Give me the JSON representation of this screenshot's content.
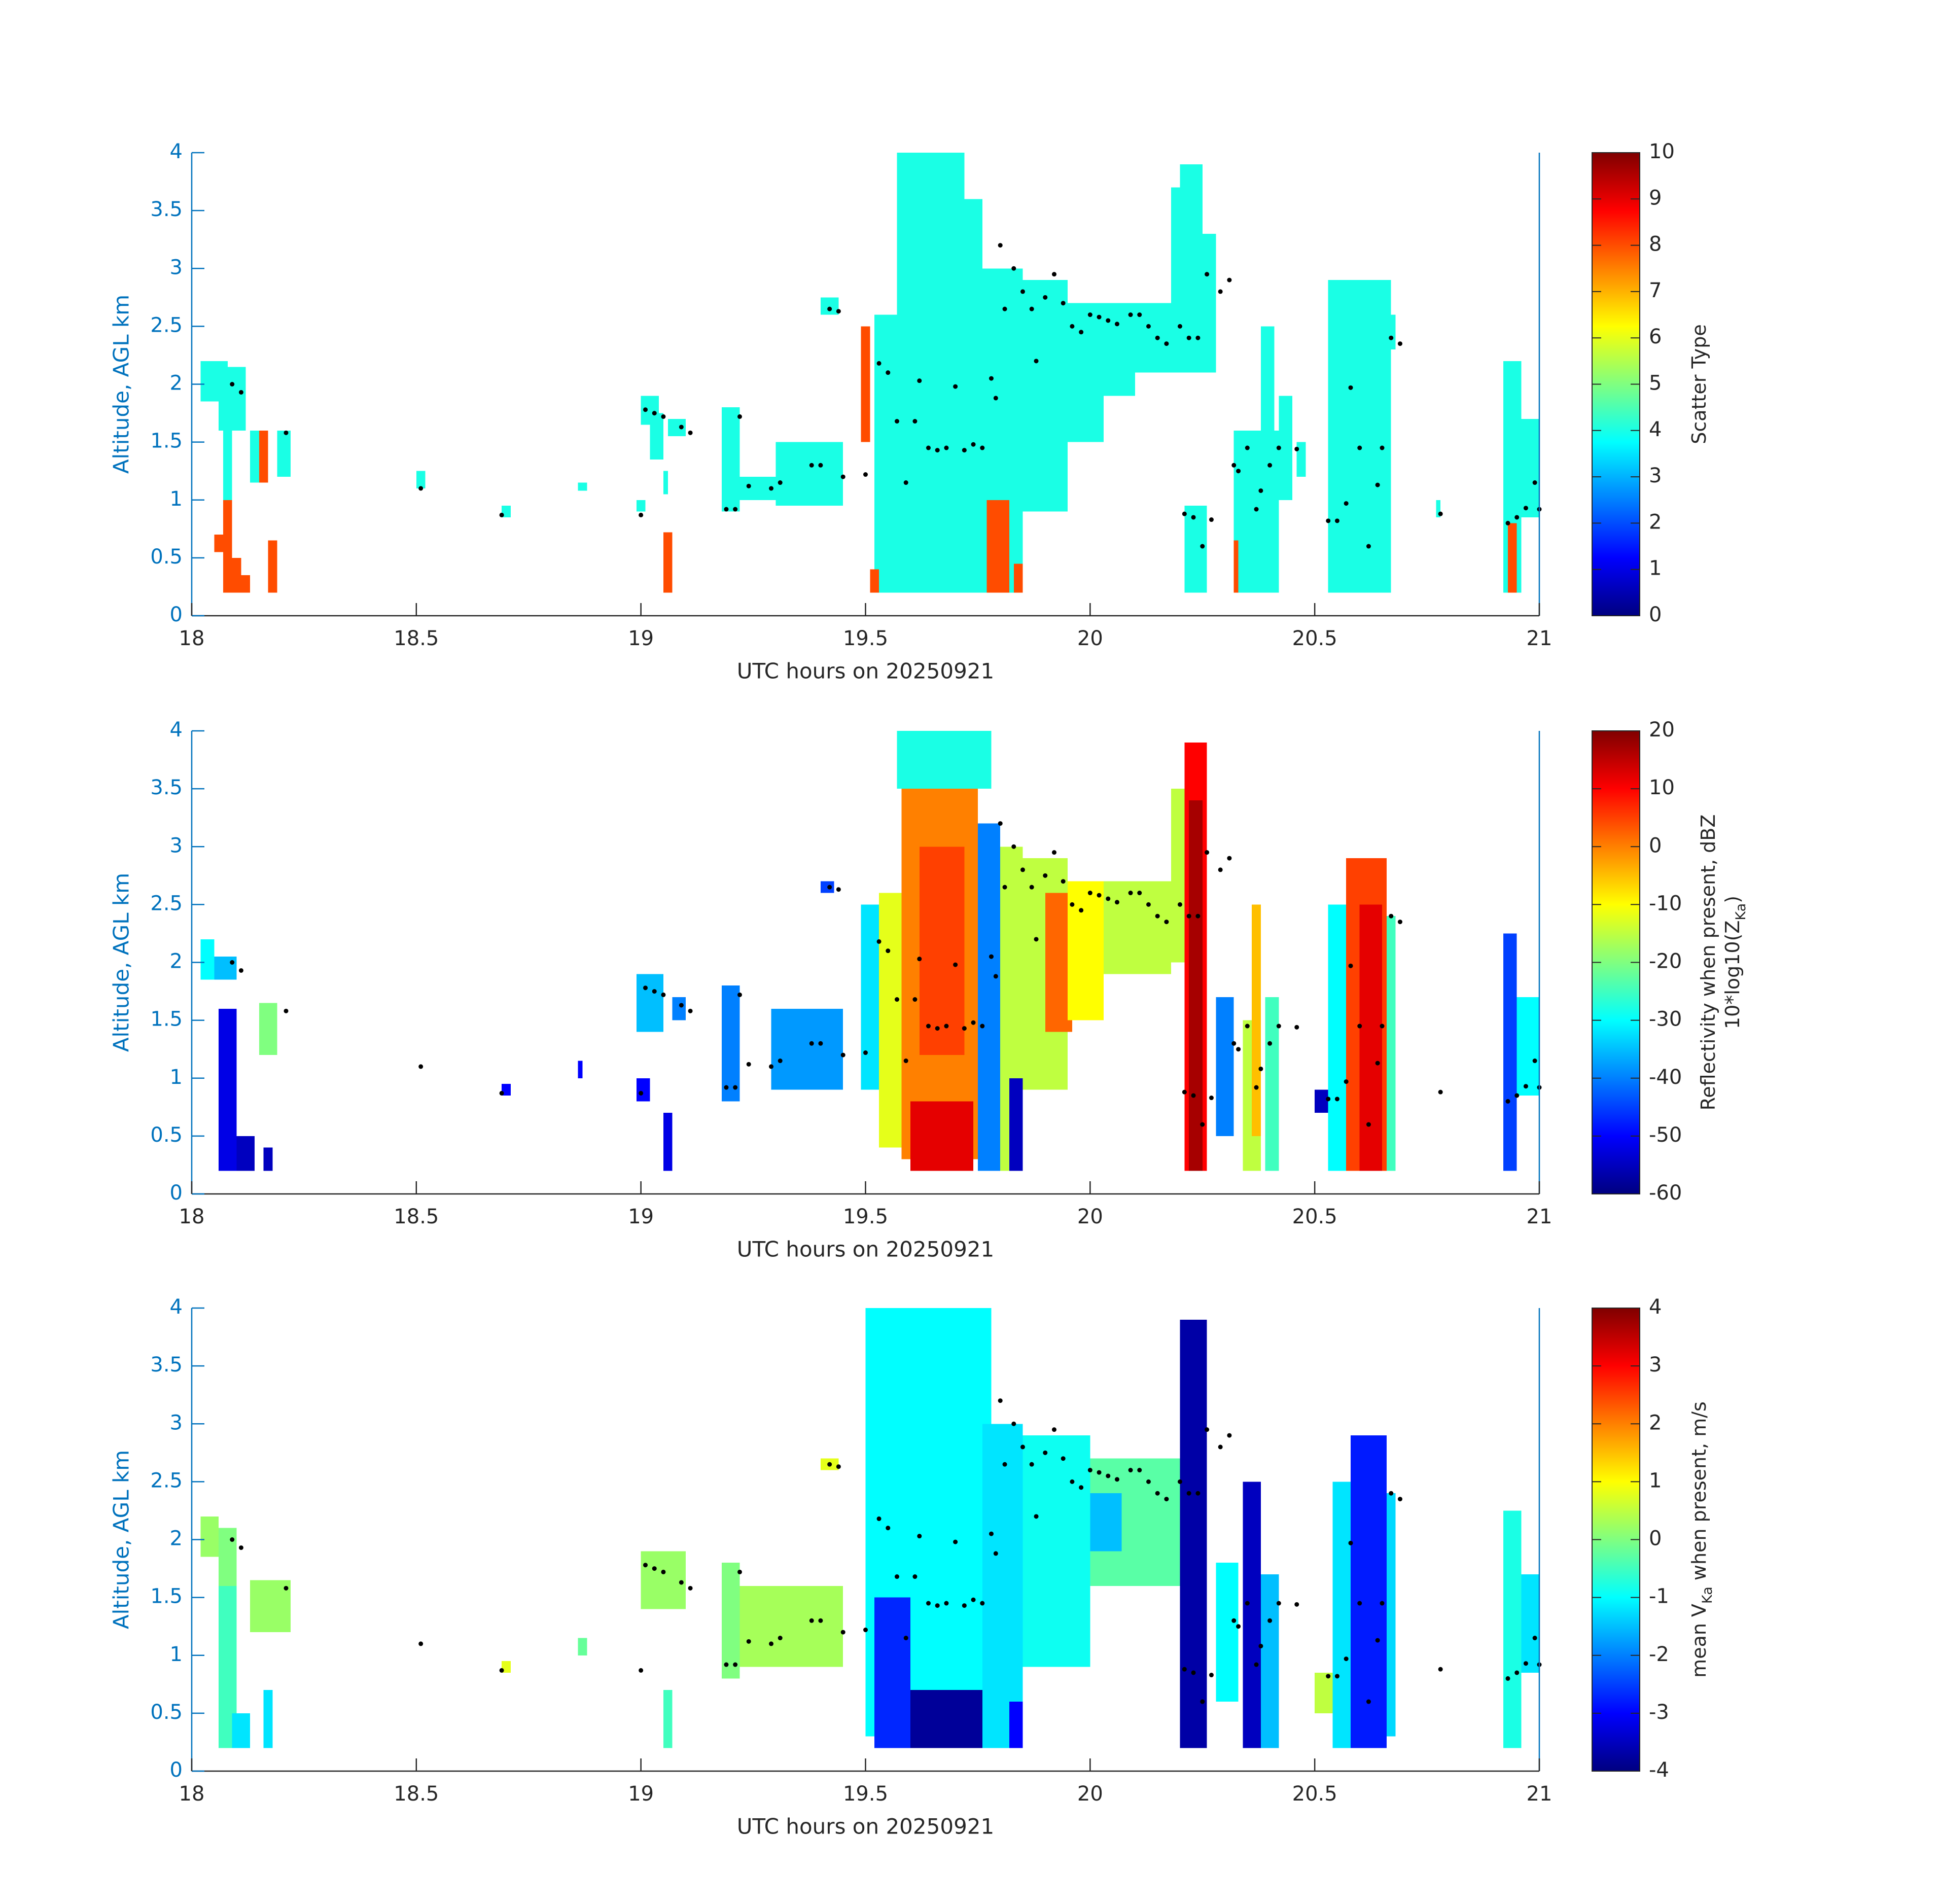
{
  "chart_data": [
    {
      "type": "heatmap",
      "xlabel": "UTC hours on 20250921",
      "ylabel": "Altitude, AGL km",
      "xlim": [
        18,
        21
      ],
      "xticks": [
        18,
        18.5,
        19,
        19.5,
        20,
        20.5,
        21
      ],
      "ylim": [
        0,
        4
      ],
      "yticks": [
        0,
        0.5,
        1,
        1.5,
        2,
        2.5,
        3,
        3.5,
        4
      ],
      "colormap": "jet",
      "clim": [
        0,
        10
      ],
      "cticks": [
        0,
        1,
        2,
        3,
        4,
        5,
        6,
        7,
        8,
        9,
        10
      ],
      "clabel": [
        [
          {
            "text": "Scatter Type"
          }
        ]
      ],
      "cells": [
        [
          18.02,
          18.08,
          1.85,
          2.2,
          4
        ],
        [
          18.06,
          18.12,
          1.6,
          2.15,
          4
        ],
        [
          18.07,
          18.09,
          1.0,
          1.8,
          4
        ],
        [
          18.05,
          18.07,
          0.55,
          0.7,
          8
        ],
        [
          18.07,
          18.09,
          0.2,
          1.0,
          8
        ],
        [
          18.09,
          18.11,
          0.2,
          0.5,
          8
        ],
        [
          18.11,
          18.13,
          0.2,
          0.35,
          8
        ],
        [
          18.13,
          18.15,
          1.15,
          1.6,
          4
        ],
        [
          18.15,
          18.17,
          1.15,
          1.6,
          8
        ],
        [
          18.17,
          18.19,
          0.2,
          0.65,
          8
        ],
        [
          18.19,
          18.22,
          1.2,
          1.6,
          4
        ],
        [
          18.5,
          18.52,
          1.1,
          1.25,
          4
        ],
        [
          18.69,
          18.71,
          0.85,
          0.95,
          4
        ],
        [
          18.86,
          18.88,
          1.08,
          1.15,
          4
        ],
        [
          19.0,
          19.04,
          1.65,
          1.9,
          4
        ],
        [
          19.02,
          19.05,
          1.35,
          1.75,
          4
        ],
        [
          18.99,
          19.01,
          0.9,
          1.0,
          4
        ],
        [
          19.05,
          19.07,
          0.2,
          0.72,
          8
        ],
        [
          19.06,
          19.1,
          1.55,
          1.7,
          4
        ],
        [
          19.05,
          19.06,
          1.05,
          1.25,
          4
        ],
        [
          19.18,
          19.22,
          0.9,
          1.8,
          4
        ],
        [
          19.22,
          19.3,
          1.0,
          1.2,
          4
        ],
        [
          19.3,
          19.45,
          0.95,
          1.5,
          4
        ],
        [
          19.4,
          19.44,
          2.6,
          2.75,
          4
        ],
        [
          19.52,
          19.78,
          0.2,
          2.6,
          4
        ],
        [
          19.57,
          19.72,
          2.6,
          4.0,
          4
        ],
        [
          19.72,
          19.76,
          2.6,
          3.6,
          4
        ],
        [
          19.49,
          19.51,
          1.5,
          2.5,
          8
        ],
        [
          19.51,
          19.53,
          0.2,
          0.4,
          8
        ],
        [
          19.76,
          19.85,
          0.2,
          3.0,
          4
        ],
        [
          19.77,
          19.82,
          0.2,
          1.0,
          8
        ],
        [
          19.83,
          19.85,
          0.2,
          0.45,
          8
        ],
        [
          19.85,
          19.95,
          0.9,
          2.9,
          4
        ],
        [
          19.95,
          20.03,
          1.5,
          2.7,
          4
        ],
        [
          20.03,
          20.1,
          1.9,
          2.7,
          4
        ],
        [
          20.1,
          20.18,
          2.1,
          2.7,
          4
        ],
        [
          20.18,
          20.25,
          2.1,
          3.7,
          4
        ],
        [
          20.2,
          20.25,
          3.7,
          3.9,
          4
        ],
        [
          20.25,
          20.28,
          2.1,
          3.3,
          4
        ],
        [
          20.21,
          20.26,
          0.2,
          0.95,
          4
        ],
        [
          20.32,
          20.42,
          0.2,
          1.6,
          4
        ],
        [
          20.32,
          20.33,
          0.2,
          0.65,
          8
        ],
        [
          20.38,
          20.41,
          0.9,
          2.5,
          4
        ],
        [
          20.42,
          20.45,
          1.0,
          1.9,
          4
        ],
        [
          20.46,
          20.48,
          1.2,
          1.5,
          4
        ],
        [
          20.53,
          20.67,
          0.2,
          2.9,
          4
        ],
        [
          20.67,
          20.68,
          2.3,
          2.6,
          4
        ],
        [
          20.77,
          20.78,
          0.85,
          1.0,
          4
        ],
        [
          20.92,
          20.96,
          0.2,
          2.2,
          4
        ],
        [
          20.93,
          20.95,
          0.2,
          0.8,
          8
        ],
        [
          20.96,
          21.0,
          0.85,
          1.7,
          4
        ]
      ],
      "points": {
        "x": [
          18.09,
          18.11,
          18.21,
          18.51,
          18.69,
          19.0,
          19.01,
          19.03,
          19.05,
          19.09,
          19.11,
          19.19,
          19.21,
          19.22,
          19.24,
          19.29,
          19.31,
          19.38,
          19.4,
          19.42,
          19.44,
          19.45,
          19.5,
          19.53,
          19.55,
          19.57,
          19.59,
          19.61,
          19.62,
          19.64,
          19.66,
          19.68,
          19.7,
          19.72,
          19.74,
          19.76,
          19.78,
          19.79,
          19.8,
          19.81,
          19.83,
          19.85,
          19.87,
          19.88,
          19.9,
          19.92,
          19.94,
          19.96,
          19.98,
          20.0,
          20.02,
          20.04,
          20.06,
          20.09,
          20.11,
          20.13,
          20.15,
          20.17,
          20.2,
          20.22,
          20.24,
          20.26,
          20.21,
          20.23,
          20.25,
          20.27,
          20.29,
          20.31,
          20.32,
          20.33,
          20.35,
          20.37,
          20.38,
          20.4,
          20.42,
          20.46,
          20.53,
          20.55,
          20.57,
          20.58,
          20.6,
          20.62,
          20.64,
          20.65,
          20.67,
          20.69,
          20.78,
          20.93,
          20.95,
          20.97,
          20.99,
          21.0
        ],
        "y": [
          2.0,
          1.93,
          1.58,
          1.1,
          0.87,
          0.87,
          1.78,
          1.75,
          1.72,
          1.63,
          1.58,
          0.92,
          0.92,
          1.72,
          1.12,
          1.1,
          1.15,
          1.3,
          1.3,
          2.65,
          2.63,
          1.2,
          1.22,
          2.18,
          2.1,
          1.68,
          1.15,
          1.68,
          2.03,
          1.45,
          1.43,
          1.45,
          1.98,
          1.43,
          1.48,
          1.45,
          2.05,
          1.88,
          3.2,
          2.65,
          3.0,
          2.8,
          2.65,
          2.2,
          2.75,
          2.95,
          2.7,
          2.5,
          2.45,
          2.6,
          2.58,
          2.55,
          2.52,
          2.6,
          2.6,
          2.5,
          2.4,
          2.35,
          2.5,
          2.4,
          2.4,
          2.95,
          0.88,
          0.85,
          0.6,
          0.83,
          2.8,
          2.9,
          1.3,
          1.25,
          1.45,
          0.92,
          1.08,
          1.3,
          1.45,
          1.44,
          0.82,
          0.82,
          0.97,
          1.97,
          1.45,
          0.6,
          1.13,
          1.45,
          2.4,
          2.35,
          0.88,
          0.8,
          0.85,
          0.93,
          1.15,
          0.92
        ]
      }
    },
    {
      "type": "heatmap",
      "xlabel": "UTC hours on 20250921",
      "ylabel": "Altitude, AGL km",
      "xlim": [
        18,
        21
      ],
      "xticks": [
        18,
        18.5,
        19,
        19.5,
        20,
        20.5,
        21
      ],
      "ylim": [
        0,
        4
      ],
      "yticks": [
        0,
        0.5,
        1,
        1.5,
        2,
        2.5,
        3,
        3.5,
        4
      ],
      "colormap": "jet",
      "clim": [
        -60,
        20
      ],
      "cticks": [
        -60,
        -50,
        -40,
        -30,
        -20,
        -10,
        0,
        10,
        20
      ],
      "clabel": [
        [
          {
            "text": "Reflectivity when present, dBZ"
          }
        ],
        [
          {
            "text": "10*log10(Z"
          },
          {
            "text": "Ka",
            "sub": true
          },
          {
            "text": ")"
          }
        ]
      ],
      "cells": [
        [
          18.02,
          18.05,
          1.85,
          2.2,
          -30
        ],
        [
          18.05,
          18.1,
          1.85,
          2.05,
          -35
        ],
        [
          18.06,
          18.1,
          0.2,
          1.6,
          -52
        ],
        [
          18.1,
          18.14,
          0.2,
          0.5,
          -55
        ],
        [
          18.15,
          18.19,
          1.2,
          1.65,
          -20
        ],
        [
          18.16,
          18.18,
          0.2,
          0.4,
          -55
        ],
        [
          18.69,
          18.71,
          0.85,
          0.95,
          -50
        ],
        [
          18.86,
          18.87,
          1.0,
          1.15,
          -50
        ],
        [
          18.99,
          19.05,
          1.4,
          1.9,
          -35
        ],
        [
          18.99,
          19.02,
          0.8,
          1.0,
          -50
        ],
        [
          19.05,
          19.07,
          0.2,
          0.7,
          -52
        ],
        [
          19.07,
          19.1,
          1.5,
          1.7,
          -40
        ],
        [
          19.18,
          19.22,
          0.8,
          1.8,
          -40
        ],
        [
          19.29,
          19.45,
          0.9,
          1.6,
          -38
        ],
        [
          19.4,
          19.43,
          2.6,
          2.7,
          -45
        ],
        [
          19.49,
          19.53,
          0.9,
          2.5,
          -32
        ],
        [
          19.53,
          19.58,
          0.4,
          2.6,
          -12
        ],
        [
          19.58,
          19.75,
          0.3,
          3.6,
          0
        ],
        [
          19.57,
          19.78,
          3.5,
          4.0,
          -28
        ],
        [
          19.62,
          19.72,
          1.2,
          3.0,
          5
        ],
        [
          19.6,
          19.74,
          0.2,
          0.8,
          12
        ],
        [
          19.75,
          19.8,
          0.2,
          3.2,
          -40
        ],
        [
          19.8,
          19.85,
          0.2,
          3.0,
          -15
        ],
        [
          19.82,
          19.85,
          0.2,
          1.0,
          -55
        ],
        [
          19.85,
          19.95,
          0.9,
          2.9,
          -15
        ],
        [
          19.9,
          19.96,
          1.4,
          2.6,
          2
        ],
        [
          19.95,
          20.03,
          1.5,
          2.7,
          -10
        ],
        [
          20.03,
          20.18,
          1.9,
          2.7,
          -15
        ],
        [
          20.18,
          20.22,
          2.0,
          3.5,
          -15
        ],
        [
          20.21,
          20.26,
          0.2,
          3.9,
          10
        ],
        [
          20.22,
          20.25,
          0.2,
          3.4,
          17
        ],
        [
          20.28,
          20.32,
          0.5,
          1.7,
          -40
        ],
        [
          20.34,
          20.38,
          0.2,
          1.5,
          -15
        ],
        [
          20.36,
          20.38,
          0.5,
          2.5,
          -5
        ],
        [
          20.39,
          20.42,
          0.2,
          1.7,
          -25
        ],
        [
          20.5,
          20.53,
          0.7,
          0.9,
          -55
        ],
        [
          20.53,
          20.57,
          0.2,
          2.5,
          -30
        ],
        [
          20.57,
          20.66,
          0.2,
          2.9,
          5
        ],
        [
          20.6,
          20.65,
          0.2,
          2.5,
          12
        ],
        [
          20.66,
          20.68,
          0.2,
          2.4,
          -25
        ],
        [
          20.92,
          20.95,
          0.2,
          2.25,
          -45
        ],
        [
          20.95,
          21.0,
          0.85,
          1.7,
          -30
        ]
      ]
    },
    {
      "type": "heatmap",
      "xlabel": "UTC hours on 20250921",
      "ylabel": "Altitude, AGL km",
      "xlim": [
        18,
        21
      ],
      "xticks": [
        18,
        18.5,
        19,
        19.5,
        20,
        20.5,
        21
      ],
      "ylim": [
        0,
        4
      ],
      "yticks": [
        0,
        0.5,
        1,
        1.5,
        2,
        2.5,
        3,
        3.5,
        4
      ],
      "colormap": "jet",
      "clim": [
        -4,
        4
      ],
      "cticks": [
        -4,
        -3,
        -2,
        -1,
        0,
        1,
        2,
        3,
        4
      ],
      "clabel": [
        [
          {
            "text": "mean V"
          },
          {
            "text": "Ka",
            "sub": true
          },
          {
            "text": " when present, m/s"
          }
        ]
      ],
      "cells": [
        [
          18.02,
          18.06,
          1.85,
          2.2,
          0.2
        ],
        [
          18.06,
          18.1,
          1.6,
          2.1,
          0
        ],
        [
          18.06,
          18.1,
          0.2,
          1.6,
          -0.5
        ],
        [
          18.09,
          18.13,
          0.2,
          0.5,
          -1.2
        ],
        [
          18.13,
          18.22,
          1.2,
          1.65,
          0.2
        ],
        [
          18.16,
          18.18,
          0.2,
          0.7,
          -1.2
        ],
        [
          18.69,
          18.71,
          0.85,
          0.95,
          0.8
        ],
        [
          18.86,
          18.88,
          1.0,
          1.15,
          -0.2
        ],
        [
          19.0,
          19.1,
          1.4,
          1.9,
          0.2
        ],
        [
          19.05,
          19.07,
          0.2,
          0.7,
          -0.5
        ],
        [
          19.18,
          19.22,
          0.8,
          1.8,
          0
        ],
        [
          19.22,
          19.45,
          0.9,
          1.6,
          0.3
        ],
        [
          19.4,
          19.44,
          2.6,
          2.7,
          0.8
        ],
        [
          19.5,
          19.78,
          0.3,
          4.0,
          -1.0
        ],
        [
          19.52,
          19.6,
          0.2,
          1.5,
          -2.7
        ],
        [
          19.6,
          19.78,
          0.2,
          0.7,
          -3.8
        ],
        [
          19.76,
          19.85,
          0.2,
          3.0,
          -1.2
        ],
        [
          19.82,
          19.85,
          0.2,
          0.6,
          -3
        ],
        [
          19.85,
          20.0,
          0.9,
          2.9,
          -0.9
        ],
        [
          20.0,
          20.2,
          1.6,
          2.7,
          -0.3
        ],
        [
          20.0,
          20.07,
          1.9,
          2.4,
          -1.5
        ],
        [
          20.2,
          20.26,
          0.2,
          3.9,
          -3.7
        ],
        [
          20.28,
          20.33,
          0.6,
          1.8,
          -1.0
        ],
        [
          20.34,
          20.38,
          0.2,
          2.5,
          -3.5
        ],
        [
          20.38,
          20.42,
          0.2,
          1.7,
          -1.5
        ],
        [
          20.5,
          20.54,
          0.5,
          0.85,
          0.5
        ],
        [
          20.54,
          20.58,
          0.2,
          2.5,
          -1.2
        ],
        [
          20.58,
          20.66,
          0.2,
          2.9,
          -2.8
        ],
        [
          20.66,
          20.68,
          0.3,
          2.4,
          -1.3
        ],
        [
          20.92,
          20.96,
          0.2,
          2.25,
          -0.8
        ],
        [
          20.96,
          21.0,
          0.85,
          1.7,
          -1.2
        ]
      ]
    }
  ]
}
